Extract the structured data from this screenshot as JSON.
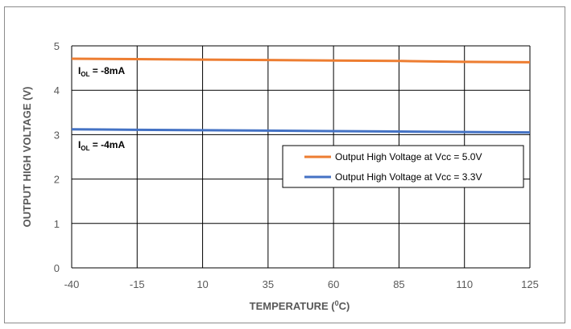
{
  "chart_data": {
    "type": "line",
    "title": "",
    "xlabel": "TEMPERATURE (",
    "xlabel_sup": "0",
    "xlabel_tail": "C)",
    "ylabel": "OUTPUT HIGH  VOLTAGE (V)",
    "x": [
      -40,
      -15,
      10,
      35,
      60,
      85,
      110,
      125
    ],
    "x_ticks": [
      "-40",
      "-15",
      "10",
      "35",
      "60",
      "85",
      "110",
      "125"
    ],
    "y_ticks": [
      "0",
      "1",
      "2",
      "3",
      "4",
      "5"
    ],
    "xlim": [
      -40,
      125
    ],
    "ylim": [
      0,
      5
    ],
    "grid": true,
    "legend_position": "center-right",
    "series": [
      {
        "name": "Output High Voltage at Vcc = 5.0V",
        "color": "#ED7D31",
        "values": [
          4.71,
          4.7,
          4.69,
          4.68,
          4.67,
          4.66,
          4.64,
          4.63
        ]
      },
      {
        "name": "Output High Voltage at Vcc =  3.3V",
        "color": "#4472C4",
        "values": [
          3.12,
          3.11,
          3.1,
          3.09,
          3.08,
          3.07,
          3.06,
          3.05
        ]
      }
    ],
    "annotations": [
      {
        "main": "I",
        "sub": "OL",
        "tail": " = -8mA"
      },
      {
        "main": "I",
        "sub": "OL",
        "tail": " = -4mA"
      }
    ]
  }
}
